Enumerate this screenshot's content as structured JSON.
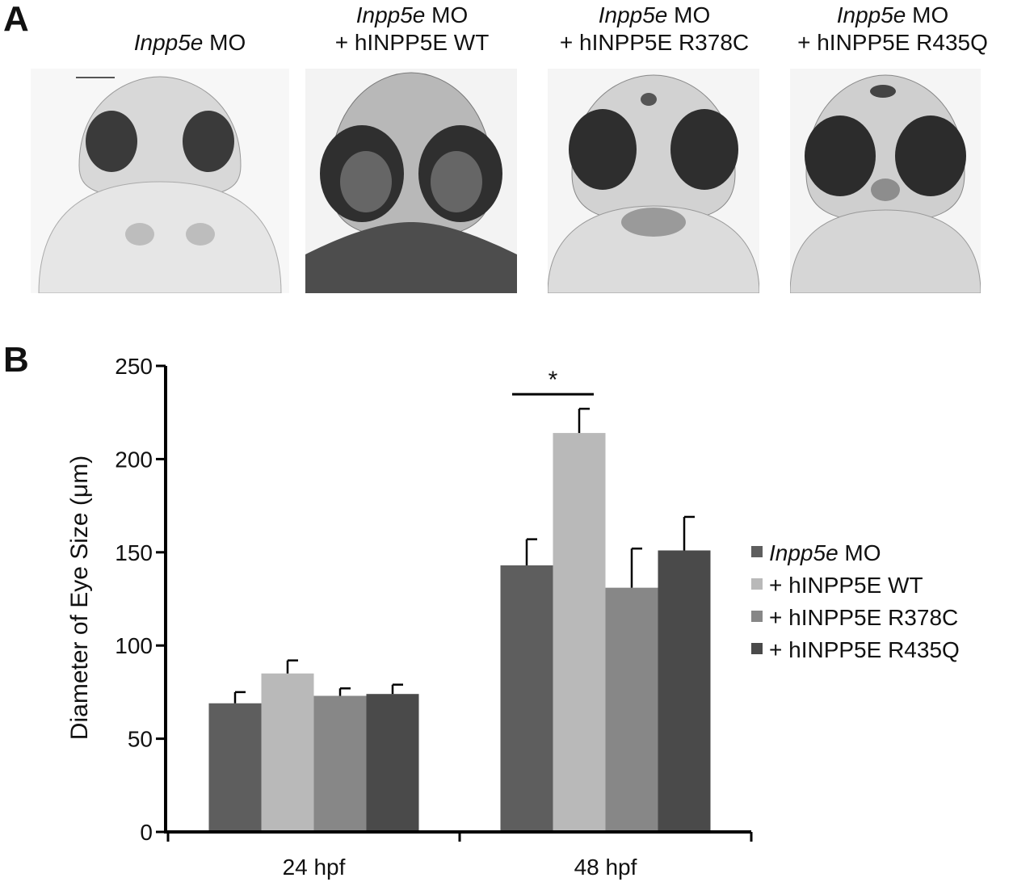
{
  "panel_a": {
    "letter": "A",
    "images": [
      {
        "title_italic": "Inpp5e",
        "title_rest": " MO",
        "title_line2": ""
      },
      {
        "title_italic": "Inpp5e",
        "title_rest": " MO",
        "title_line2": "+ hINPP5E WT"
      },
      {
        "title_italic": "Inpp5e",
        "title_rest": " MO",
        "title_line2": "+ hINPP5E R378C"
      },
      {
        "title_italic": "Inpp5e",
        "title_rest": " MO",
        "title_line2": "+ hINPP5E R435Q"
      }
    ]
  },
  "panel_b": {
    "letter": "B"
  },
  "chart_data": {
    "type": "bar",
    "categories": [
      "24 hpf",
      "48 hpf"
    ],
    "series": [
      {
        "name_italic": "Inpp5e",
        "name": " MO",
        "values": [
          69,
          143
        ],
        "errors": [
          6,
          14
        ],
        "color": "#5e5e5e"
      },
      {
        "name_italic": "",
        "name": "+ hINPP5E  WT",
        "values": [
          85,
          214
        ],
        "errors": [
          7,
          13
        ],
        "color": "#b9b9b9"
      },
      {
        "name_italic": "",
        "name": "+ hINPP5E  R378C",
        "values": [
          73,
          131
        ],
        "errors": [
          4,
          21
        ],
        "color": "#878787"
      },
      {
        "name_italic": "",
        "name": "+ hINPP5E  R435Q",
        "values": [
          74,
          151
        ],
        "errors": [
          5,
          18
        ],
        "color": "#4a4a4a"
      }
    ],
    "ylabel": "Diameter of Eye Size (μm)",
    "ylim": [
      0,
      250
    ],
    "yticks": [
      0,
      50,
      100,
      150,
      200,
      250
    ],
    "grid": false,
    "legend_position": "right",
    "annotations": [
      {
        "text": "*",
        "category": "48 hpf",
        "between_series": [
          0,
          1
        ]
      }
    ]
  }
}
